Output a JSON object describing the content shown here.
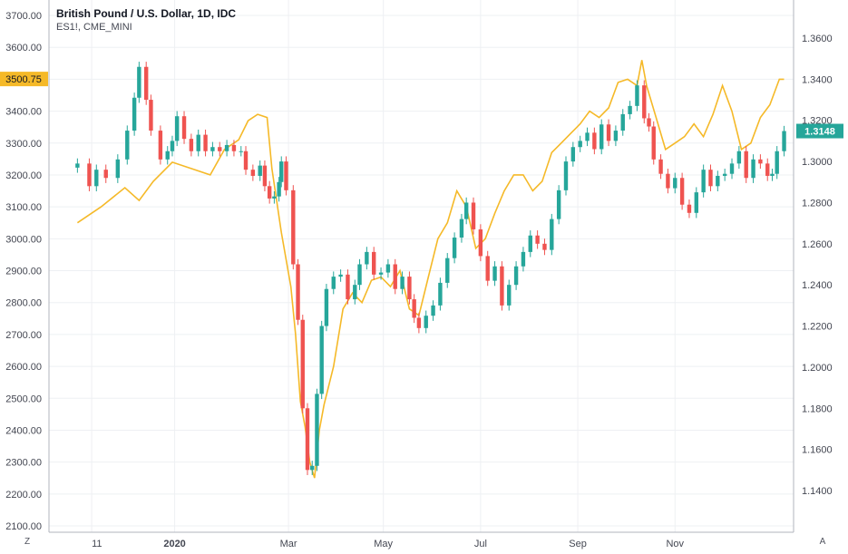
{
  "header": {
    "title": "British Pound / U.S. Dollar, 1D, IDC",
    "subtitle": "ES1!, CME_MINI"
  },
  "controls": {
    "zoom_label": "Z",
    "auto_label": "A"
  },
  "colors": {
    "up": "#26a69a",
    "down": "#ef5350",
    "overlay": "#f5b928",
    "grid": "#eef0f3",
    "axis": "#b2b5be",
    "last_price_bg": "#26a69a",
    "overlay_price_bg": "#f5b928"
  },
  "chart_data": {
    "type": "candlestick",
    "title": "British Pound / U.S. Dollar, 1D, IDC",
    "left_axis": {
      "ticks": [
        "3700.00",
        "3600.00",
        "3500.00",
        "3400.00",
        "3300.00",
        "3200.00",
        "3100.00",
        "3000.00",
        "2900.00",
        "2800.00",
        "2700.00",
        "2600.00",
        "2500.00",
        "2400.00",
        "2300.00",
        "2200.00",
        "2100.00"
      ],
      "range": [
        2100,
        3700
      ]
    },
    "right_axis": {
      "ticks": [
        "1.3600",
        "1.3400",
        "1.3200",
        "1.3000",
        "1.2800",
        "1.2600",
        "1.2400",
        "1.2200",
        "1.2000",
        "1.1800",
        "1.1600",
        "1.1400"
      ],
      "range": [
        1.125,
        1.372
      ]
    },
    "x_labels": [
      "11",
      "2020",
      "Mar",
      "May",
      "Jul",
      "Sep",
      "Nov"
    ],
    "last_price_label": "1.3148",
    "overlay_price_label": "3500.75",
    "series": [
      {
        "name": "GBPUSD",
        "kind": "candles",
        "points": [
          {
            "x": 0.0,
            "c": 1.299
          },
          {
            "x": 0.25,
            "c": 1.288
          },
          {
            "x": 0.4,
            "c": 1.296
          },
          {
            "x": 0.6,
            "c": 1.292
          },
          {
            "x": 0.85,
            "c": 1.301
          },
          {
            "x": 1.05,
            "c": 1.315
          },
          {
            "x": 1.2,
            "c": 1.331
          },
          {
            "x": 1.3,
            "c": 1.346
          },
          {
            "x": 1.45,
            "c": 1.33
          },
          {
            "x": 1.55,
            "c": 1.315
          },
          {
            "x": 1.75,
            "c": 1.301
          },
          {
            "x": 1.9,
            "c": 1.305
          },
          {
            "x": 2.0,
            "c": 1.31
          },
          {
            "x": 2.1,
            "c": 1.322
          },
          {
            "x": 2.25,
            "c": 1.311
          },
          {
            "x": 2.4,
            "c": 1.305
          },
          {
            "x": 2.55,
            "c": 1.313
          },
          {
            "x": 2.7,
            "c": 1.305
          },
          {
            "x": 2.85,
            "c": 1.307
          },
          {
            "x": 3.0,
            "c": 1.305
          },
          {
            "x": 3.15,
            "c": 1.308
          },
          {
            "x": 3.3,
            "c": 1.305
          },
          {
            "x": 3.45,
            "c": 1.305
          },
          {
            "x": 3.55,
            "c": 1.296
          },
          {
            "x": 3.7,
            "c": 1.293
          },
          {
            "x": 3.85,
            "c": 1.298
          },
          {
            "x": 3.95,
            "c": 1.288
          },
          {
            "x": 4.05,
            "c": 1.282
          },
          {
            "x": 4.15,
            "c": 1.283
          },
          {
            "x": 4.25,
            "c": 1.29
          },
          {
            "x": 4.3,
            "c": 1.3
          },
          {
            "x": 4.4,
            "c": 1.286
          },
          {
            "x": 4.55,
            "c": 1.25
          },
          {
            "x": 4.65,
            "c": 1.223
          },
          {
            "x": 4.75,
            "c": 1.18
          },
          {
            "x": 4.85,
            "c": 1.15
          },
          {
            "x": 4.95,
            "c": 1.152
          },
          {
            "x": 5.05,
            "c": 1.187
          },
          {
            "x": 5.15,
            "c": 1.22
          },
          {
            "x": 5.25,
            "c": 1.238
          },
          {
            "x": 5.4,
            "c": 1.244
          },
          {
            "x": 5.55,
            "c": 1.245
          },
          {
            "x": 5.7,
            "c": 1.233
          },
          {
            "x": 5.85,
            "c": 1.24
          },
          {
            "x": 5.95,
            "c": 1.25
          },
          {
            "x": 6.1,
            "c": 1.256
          },
          {
            "x": 6.25,
            "c": 1.245
          },
          {
            "x": 6.4,
            "c": 1.246
          },
          {
            "x": 6.55,
            "c": 1.25
          },
          {
            "x": 6.7,
            "c": 1.238
          },
          {
            "x": 6.85,
            "c": 1.244
          },
          {
            "x": 7.0,
            "c": 1.233
          },
          {
            "x": 7.1,
            "c": 1.224
          },
          {
            "x": 7.2,
            "c": 1.219
          },
          {
            "x": 7.35,
            "c": 1.225
          },
          {
            "x": 7.5,
            "c": 1.23
          },
          {
            "x": 7.65,
            "c": 1.241
          },
          {
            "x": 7.8,
            "c": 1.253
          },
          {
            "x": 7.95,
            "c": 1.263
          },
          {
            "x": 8.1,
            "c": 1.272
          },
          {
            "x": 8.2,
            "c": 1.28
          },
          {
            "x": 8.35,
            "c": 1.267
          },
          {
            "x": 8.5,
            "c": 1.254
          },
          {
            "x": 8.65,
            "c": 1.242
          },
          {
            "x": 8.8,
            "c": 1.249
          },
          {
            "x": 8.95,
            "c": 1.23
          },
          {
            "x": 9.1,
            "c": 1.24
          },
          {
            "x": 9.25,
            "c": 1.249
          },
          {
            "x": 9.4,
            "c": 1.256
          },
          {
            "x": 9.55,
            "c": 1.264
          },
          {
            "x": 9.7,
            "c": 1.26
          },
          {
            "x": 9.85,
            "c": 1.257
          },
          {
            "x": 10.0,
            "c": 1.272
          },
          {
            "x": 10.15,
            "c": 1.286
          },
          {
            "x": 10.3,
            "c": 1.3
          },
          {
            "x": 10.45,
            "c": 1.307
          },
          {
            "x": 10.6,
            "c": 1.31
          },
          {
            "x": 10.75,
            "c": 1.314
          },
          {
            "x": 10.9,
            "c": 1.306
          },
          {
            "x": 11.05,
            "c": 1.318
          },
          {
            "x": 11.2,
            "c": 1.31
          },
          {
            "x": 11.35,
            "c": 1.315
          },
          {
            "x": 11.5,
            "c": 1.323
          },
          {
            "x": 11.65,
            "c": 1.327
          },
          {
            "x": 11.8,
            "c": 1.337
          },
          {
            "x": 11.95,
            "c": 1.321
          },
          {
            "x": 12.05,
            "c": 1.317
          },
          {
            "x": 12.15,
            "c": 1.301
          },
          {
            "x": 12.3,
            "c": 1.294
          },
          {
            "x": 12.45,
            "c": 1.287
          },
          {
            "x": 12.6,
            "c": 1.292
          },
          {
            "x": 12.75,
            "c": 1.279
          },
          {
            "x": 12.9,
            "c": 1.275
          },
          {
            "x": 13.05,
            "c": 1.285
          },
          {
            "x": 13.2,
            "c": 1.296
          },
          {
            "x": 13.35,
            "c": 1.288
          },
          {
            "x": 13.5,
            "c": 1.293
          },
          {
            "x": 13.65,
            "c": 1.294
          },
          {
            "x": 13.8,
            "c": 1.299
          },
          {
            "x": 13.95,
            "c": 1.305
          },
          {
            "x": 14.1,
            "c": 1.292
          },
          {
            "x": 14.25,
            "c": 1.301
          },
          {
            "x": 14.4,
            "c": 1.299
          },
          {
            "x": 14.55,
            "c": 1.293
          },
          {
            "x": 14.65,
            "c": 1.294
          },
          {
            "x": 14.75,
            "c": 1.305
          },
          {
            "x": 14.9,
            "c": 1.3148
          }
        ]
      },
      {
        "name": "ES1!",
        "kind": "line",
        "x": [
          0.0,
          0.5,
          1.0,
          1.3,
          1.6,
          2.0,
          2.4,
          2.8,
          3.1,
          3.4,
          3.6,
          3.8,
          4.0,
          4.1,
          4.3,
          4.5,
          4.6,
          4.7,
          4.8,
          4.9,
          5.0,
          5.1,
          5.2,
          5.4,
          5.6,
          5.8,
          6.0,
          6.2,
          6.4,
          6.6,
          6.8,
          7.0,
          7.2,
          7.4,
          7.6,
          7.8,
          8.0,
          8.2,
          8.4,
          8.6,
          8.8,
          9.0,
          9.2,
          9.4,
          9.6,
          9.8,
          10.0,
          10.2,
          10.4,
          10.6,
          10.8,
          11.0,
          11.2,
          11.4,
          11.6,
          11.8,
          11.9,
          12.0,
          12.2,
          12.4,
          12.6,
          12.8,
          13.0,
          13.2,
          13.4,
          13.6,
          13.8,
          14.0,
          14.2,
          14.4,
          14.6,
          14.8,
          14.9
        ],
        "y": [
          3050,
          3100,
          3160,
          3120,
          3180,
          3240,
          3220,
          3200,
          3280,
          3310,
          3370,
          3390,
          3380,
          3220,
          3020,
          2850,
          2700,
          2490,
          2410,
          2300,
          2250,
          2400,
          2480,
          2600,
          2780,
          2830,
          2800,
          2870,
          2880,
          2850,
          2900,
          2780,
          2760,
          2880,
          3000,
          3050,
          3150,
          3100,
          2970,
          3000,
          3080,
          3150,
          3200,
          3200,
          3150,
          3180,
          3270,
          3300,
          3330,
          3360,
          3400,
          3380,
          3410,
          3490,
          3500,
          3480,
          3560,
          3480,
          3380,
          3280,
          3300,
          3320,
          3360,
          3320,
          3390,
          3480,
          3400,
          3280,
          3300,
          3380,
          3420,
          3500,
          3500
        ]
      }
    ]
  }
}
